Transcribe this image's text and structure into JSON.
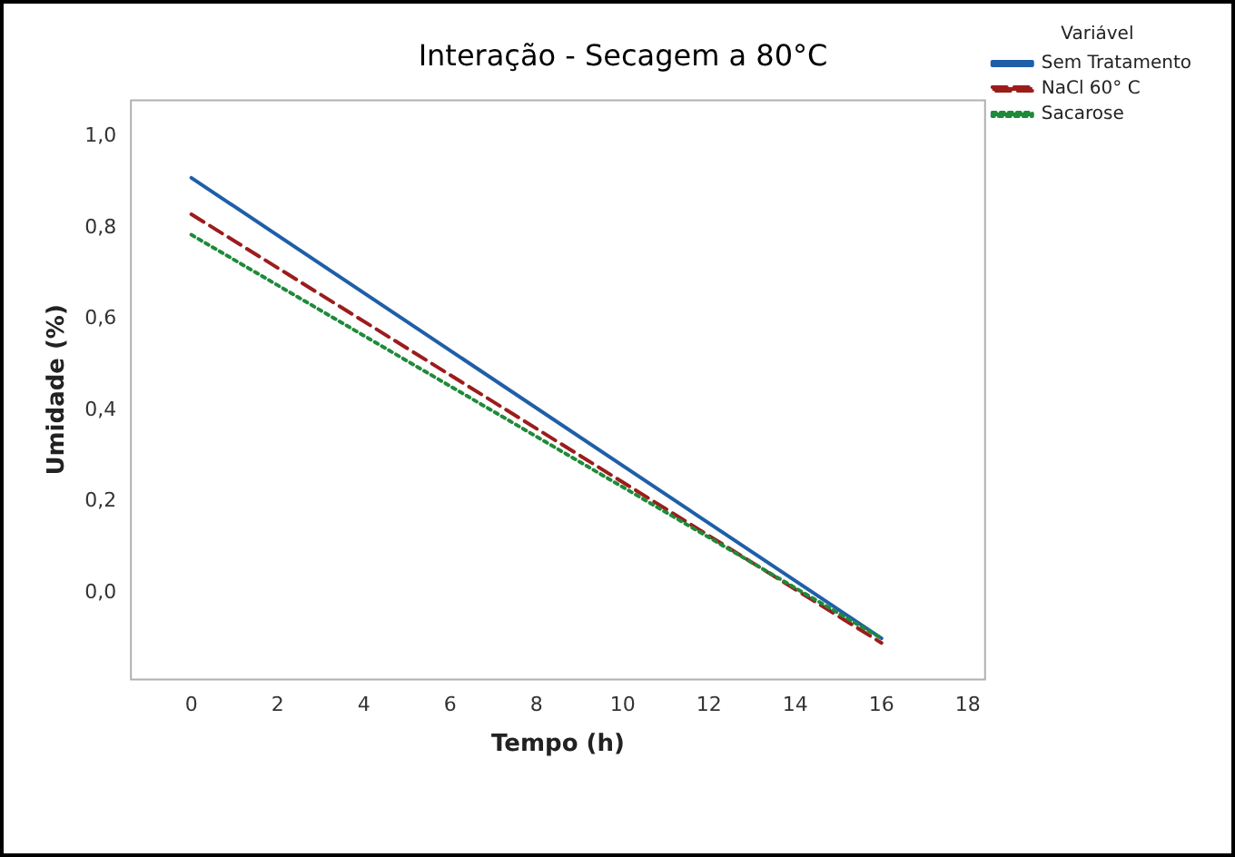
{
  "chart_data": {
    "type": "line",
    "title": "Interação - Secagem a 80°C",
    "xlabel": "Tempo (h)",
    "ylabel": "Umidade (%)",
    "legend_title": "Variável",
    "legend": "right",
    "grid": false,
    "xlim": [
      -1.4,
      18.4
    ],
    "xticks": [
      0,
      2,
      4,
      6,
      8,
      10,
      12,
      14,
      16,
      18
    ],
    "ylim": [
      -0.19,
      1.08
    ],
    "yticks": [
      {
        "value": 0,
        "label": "0,0"
      },
      {
        "value": 0.2,
        "label": "0,2"
      },
      {
        "value": 0.4,
        "label": "0,4"
      },
      {
        "value": 0.6,
        "label": "0,6"
      },
      {
        "value": 0.8,
        "label": "0,8"
      },
      {
        "value": 1,
        "label": "1,0"
      }
    ],
    "x": [
      0,
      16
    ],
    "series": [
      {
        "name": "Sem Tratamento",
        "color": "#1f5fa8",
        "values": [
          0.91,
          -0.1
        ],
        "line_style": "solid"
      },
      {
        "name": "NaCl 60° C",
        "color": "#9c1c1c",
        "values": [
          0.83,
          -0.11
        ],
        "line_style": "dashed"
      },
      {
        "name": "Sacarose",
        "color": "#1f8a3a",
        "values": [
          0.785,
          -0.1
        ],
        "line_style": "dotted"
      }
    ]
  }
}
